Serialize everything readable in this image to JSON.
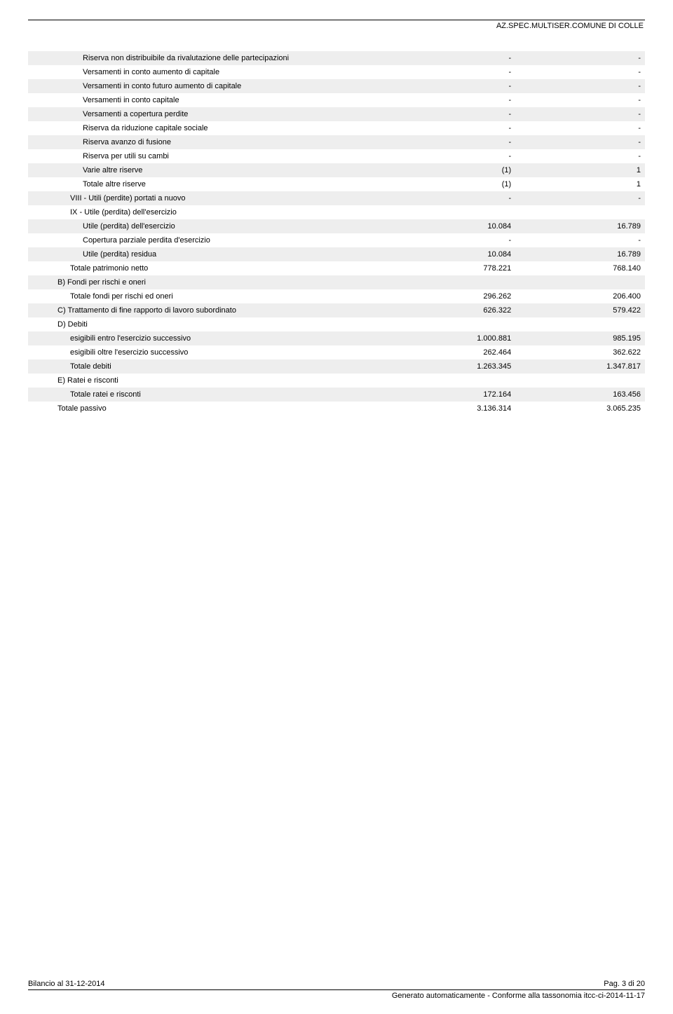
{
  "header": {
    "org": "AZ.SPEC.MULTISER.COMUNE DI COLLE"
  },
  "rows": [
    {
      "label": "Riserva non distribuibile da rivalutazione delle partecipazioni",
      "v1": "-",
      "v2": "-",
      "indent": "ind-2",
      "shaded": true
    },
    {
      "label": "Versamenti in conto aumento di capitale",
      "v1": "-",
      "v2": "-",
      "indent": "ind-2",
      "shaded": false
    },
    {
      "label": "Versamenti in conto futuro aumento di capitale",
      "v1": "-",
      "v2": "-",
      "indent": "ind-2",
      "shaded": true
    },
    {
      "label": "Versamenti in conto capitale",
      "v1": "-",
      "v2": "-",
      "indent": "ind-2",
      "shaded": false
    },
    {
      "label": "Versamenti a copertura perdite",
      "v1": "-",
      "v2": "-",
      "indent": "ind-2",
      "shaded": true
    },
    {
      "label": "Riserva da riduzione capitale sociale",
      "v1": "-",
      "v2": "-",
      "indent": "ind-2",
      "shaded": false
    },
    {
      "label": "Riserva avanzo di fusione",
      "v1": "-",
      "v2": "-",
      "indent": "ind-2",
      "shaded": true
    },
    {
      "label": "Riserva per utili su cambi",
      "v1": "-",
      "v2": "-",
      "indent": "ind-2",
      "shaded": false
    },
    {
      "label": "Varie altre riserve",
      "v1": "(1)",
      "v2": "1",
      "indent": "ind-2",
      "shaded": true
    },
    {
      "label": "Totale altre riserve",
      "v1": "(1)",
      "v2": "1",
      "indent": "ind-2",
      "shaded": false
    },
    {
      "label": "VIII - Utili (perdite) portati a nuovo",
      "v1": "-",
      "v2": "-",
      "indent": "ind-1",
      "shaded": true
    },
    {
      "label": "IX - Utile (perdita) dell'esercizio",
      "v1": "",
      "v2": "",
      "indent": "ind-1",
      "shaded": false
    },
    {
      "label": "Utile (perdita) dell'esercizio",
      "v1": "10.084",
      "v2": "16.789",
      "indent": "ind-2",
      "shaded": true
    },
    {
      "label": "Copertura parziale perdita d'esercizio",
      "v1": "-",
      "v2": "-",
      "indent": "ind-2",
      "shaded": false
    },
    {
      "label": "Utile (perdita) residua",
      "v1": "10.084",
      "v2": "16.789",
      "indent": "ind-2",
      "shaded": true
    },
    {
      "label": "Totale patrimonio netto",
      "v1": "778.221",
      "v2": "768.140",
      "indent": "ind-1",
      "shaded": false
    },
    {
      "label": "B) Fondi per rischi e oneri",
      "v1": "",
      "v2": "",
      "indent": "ind-b",
      "shaded": true
    },
    {
      "label": "Totale fondi per rischi ed oneri",
      "v1": "296.262",
      "v2": "206.400",
      "indent": "ind-1",
      "shaded": false
    },
    {
      "label": "C) Trattamento di fine rapporto di lavoro subordinato",
      "v1": "626.322",
      "v2": "579.422",
      "indent": "ind-b",
      "shaded": true
    },
    {
      "label": "D) Debiti",
      "v1": "",
      "v2": "",
      "indent": "ind-b",
      "shaded": false
    },
    {
      "label": "esigibili entro l'esercizio successivo",
      "v1": "1.000.881",
      "v2": "985.195",
      "indent": "ind-1",
      "shaded": true
    },
    {
      "label": "esigibili oltre l'esercizio successivo",
      "v1": "262.464",
      "v2": "362.622",
      "indent": "ind-1",
      "shaded": false
    },
    {
      "label": "Totale debiti",
      "v1": "1.263.345",
      "v2": "1.347.817",
      "indent": "ind-1",
      "shaded": true
    },
    {
      "label": "E) Ratei e risconti",
      "v1": "",
      "v2": "",
      "indent": "ind-b",
      "shaded": false
    },
    {
      "label": "Totale ratei e risconti",
      "v1": "172.164",
      "v2": "163.456",
      "indent": "ind-1",
      "shaded": true
    },
    {
      "label": "Totale passivo",
      "v1": "3.136.314",
      "v2": "3.065.235",
      "indent": "ind-b",
      "shaded": false
    }
  ],
  "footer": {
    "left": "Bilancio al 31-12-2014",
    "right": "Pag. 3 di 20",
    "bottom": "Generato automaticamente - Conforme alla tassonomia itcc-ci-2014-11-17"
  }
}
